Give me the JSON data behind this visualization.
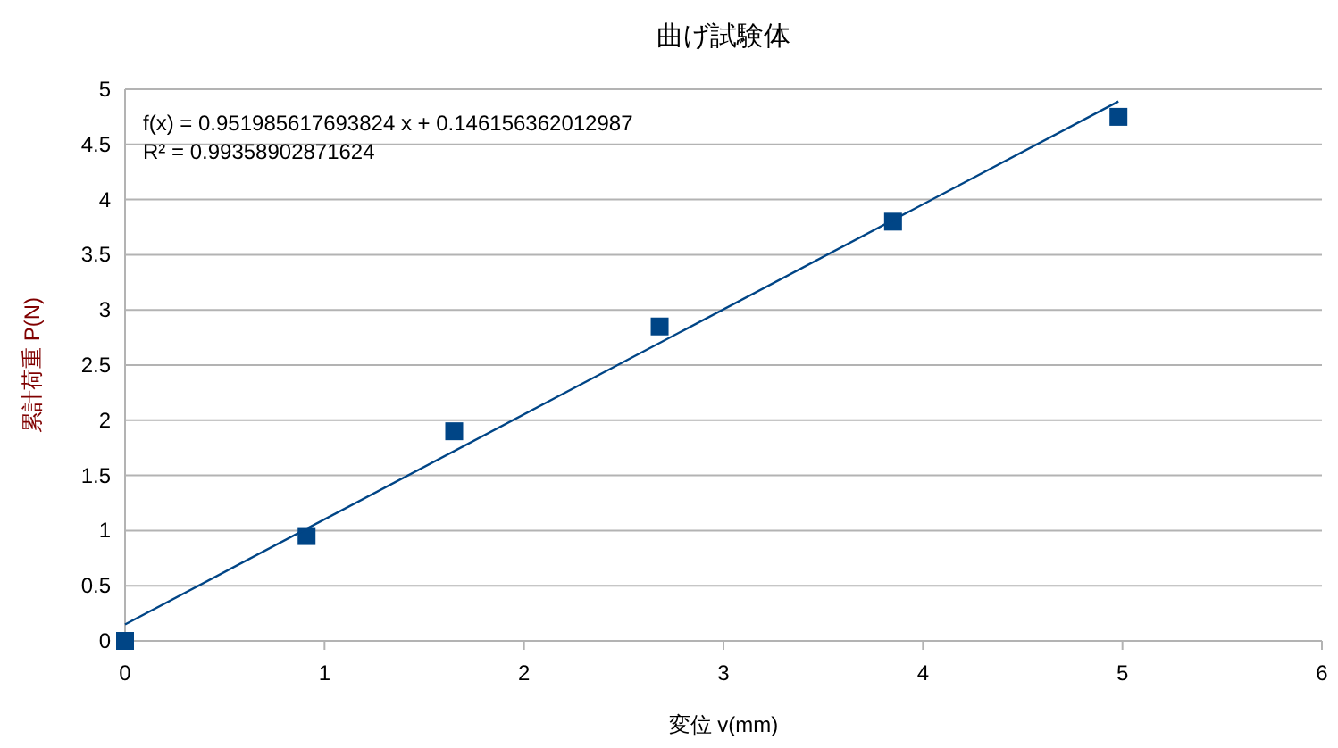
{
  "chart_data": {
    "type": "scatter",
    "title": "曲げ試験体",
    "xlabel": "変位 v(mm)",
    "ylabel": "累計荷重 P(N)",
    "annotations": [
      "f(x) = 0.951985617693824 x + 0.146156362012987",
      "R² = 0.99358902871624"
    ],
    "xlim": [
      0,
      6
    ],
    "xticks": [
      0,
      1,
      2,
      3,
      4,
      5,
      6
    ],
    "ylim": [
      0,
      5
    ],
    "yticks": [
      0,
      0.5,
      1,
      1.5,
      2,
      2.5,
      3,
      3.5,
      4,
      4.5,
      5
    ],
    "grid": "y",
    "series": [
      {
        "marker": "square",
        "color": "#004586",
        "x": [
          0,
          0.91,
          1.65,
          2.68,
          3.85,
          4.98
        ],
        "values": [
          0,
          0.95,
          1.9,
          2.85,
          3.8,
          4.75
        ]
      },
      {
        "type": "line",
        "marker": "none",
        "color": "#004586",
        "x": [
          0,
          4.98
        ],
        "values": [
          0.15,
          4.89
        ]
      }
    ]
  }
}
